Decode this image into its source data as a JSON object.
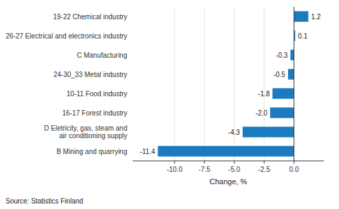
{
  "chart_data": {
    "type": "bar",
    "orientation": "horizontal",
    "categories": [
      "B Mining and quarrying",
      "D Eletricity, gas, steam and\nair conditioning supply",
      "16-17 Forest industry",
      "10-11 Food industry",
      "24-30_33 Metal industry",
      "C Manufacturing",
      "26-27 Electrical and electronics industry",
      "19-22 Chemical industry"
    ],
    "values": [
      -11.4,
      -4.3,
      -2.0,
      -1.8,
      -0.5,
      -0.3,
      0.1,
      1.2
    ],
    "value_labels": [
      "-11.4",
      "-4.3",
      "-2.0",
      "-1.8",
      "-0.5",
      "-0.3",
      "0.1",
      "1.2"
    ],
    "data_labels": true,
    "color": "#1c7bbf",
    "xlabel": "Change, %",
    "xlim": [
      -13.5,
      2.5
    ],
    "xticks": [
      {
        "value": -10,
        "label": "-10.0"
      },
      -7.5,
      {
        "value": -5,
        "label": "-5.0"
      },
      -2.5,
      {
        "value": 0,
        "label": "0.0"
      }
    ],
    "grid": true,
    "annotations": [
      "Source: Statistics Finland"
    ]
  }
}
